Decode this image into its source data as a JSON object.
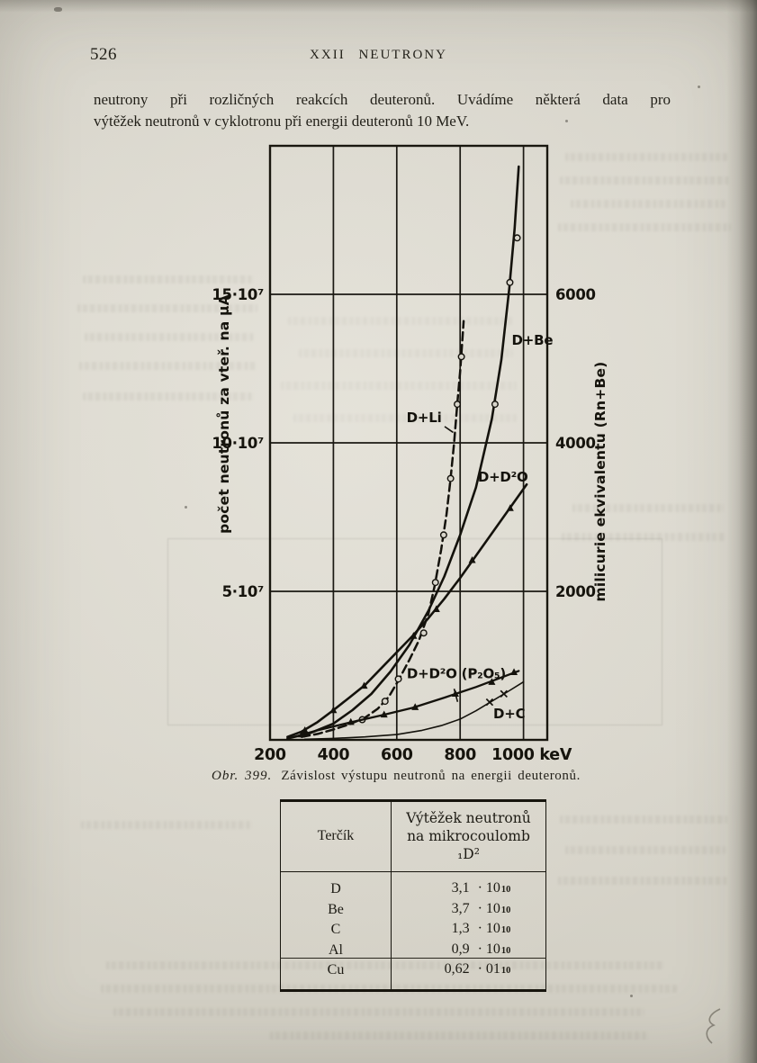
{
  "page": {
    "number": "526",
    "running_head": "XXII NEUTRONY",
    "paragraph_line1": "neutrony při rozličných reakcích deuteronů. Uvádíme některá data pro",
    "paragraph_line2": "výtěžek neutronů v cyklotronu při energii deuteronů 10 MeV.",
    "caption_prefix": "Obr. 399.",
    "caption_text": "Závislost výstupu neutronů na energii deuteronů."
  },
  "chart_data": {
    "type": "line",
    "title": "",
    "xlabel": "keV",
    "ylabel_left": "počet neutronů za vteř. na μA",
    "ylabel_right": "milicurie ekvivalentu (Rn+Be)",
    "x_range": [
      200,
      1075
    ],
    "y_range": [
      0,
      20
    ],
    "y_unit": "10^7 neutronů / s·μA",
    "grid": true,
    "x_ticks": [
      {
        "v": 200,
        "label": "200",
        "grid": false,
        "dx": 0
      },
      {
        "v": 400,
        "label": "400",
        "grid": true,
        "dx": 0
      },
      {
        "v": 600,
        "label": "600",
        "grid": true,
        "dx": 0
      },
      {
        "v": 800,
        "label": "800",
        "grid": true,
        "dx": 0
      },
      {
        "v": 1000,
        "label": "1000 keV",
        "grid": true,
        "dx": 9
      }
    ],
    "y_ticks": [
      {
        "v": 5,
        "left": "5·10⁷",
        "right": "2000"
      },
      {
        "v": 10,
        "left": "10·10⁷",
        "right": "4000"
      },
      {
        "v": 15,
        "left": "15·10⁷",
        "right": "6000"
      }
    ],
    "series": [
      {
        "name": "D+Be",
        "label": "D+Be",
        "label_pos": [
          1028,
          13.3
        ],
        "label_anchor": "middle",
        "dash": false,
        "width": 2.6,
        "marker": "circle",
        "points": [
          [
            255,
            0.05
          ],
          [
            320,
            0.2
          ],
          [
            400,
            0.55
          ],
          [
            460,
            1.0
          ],
          [
            520,
            1.55
          ],
          [
            580,
            2.3
          ],
          [
            640,
            3.2
          ],
          [
            700,
            4.35
          ],
          [
            750,
            5.5
          ],
          [
            800,
            6.9
          ],
          [
            850,
            8.5
          ],
          [
            900,
            10.8
          ],
          [
            930,
            12.8
          ],
          [
            955,
            15.2
          ],
          [
            972,
            17.2
          ],
          [
            985,
            19.3
          ]
        ],
        "marker_points": [
          [
            910,
            11.3
          ],
          [
            957,
            15.4
          ],
          [
            980,
            16.9
          ]
        ]
      },
      {
        "name": "D+Li",
        "label": "D+Li",
        "label_pos": [
          686,
          10.7
        ],
        "label_anchor": "middle",
        "dash": true,
        "width": 2.5,
        "marker": "circle",
        "pointer": [
          [
            751,
            10.55
          ],
          [
            778,
            10.35
          ]
        ],
        "points": [
          [
            300,
            0.1
          ],
          [
            350,
            0.2
          ],
          [
            400,
            0.35
          ],
          [
            450,
            0.52
          ],
          [
            500,
            0.75
          ],
          [
            540,
            1.05
          ],
          [
            575,
            1.45
          ],
          [
            605,
            2.0
          ],
          [
            640,
            2.7
          ],
          [
            670,
            3.35
          ],
          [
            700,
            4.25
          ],
          [
            720,
            5.2
          ],
          [
            740,
            6.4
          ],
          [
            757,
            7.6
          ],
          [
            770,
            8.8
          ],
          [
            781,
            10.0
          ],
          [
            791,
            11.3
          ],
          [
            800,
            12.4
          ],
          [
            806,
            13.3
          ],
          [
            811,
            14.1
          ]
        ],
        "marker_points": [
          [
            491,
            0.68
          ],
          [
            563,
            1.3
          ],
          [
            605,
            2.05
          ],
          [
            685,
            3.6
          ],
          [
            722,
            5.3
          ],
          [
            748,
            6.9
          ],
          [
            770,
            8.8
          ],
          [
            791,
            11.3
          ],
          [
            804,
            12.9
          ]
        ]
      },
      {
        "name": "D+D2O",
        "label": "D+D²O",
        "label_pos": [
          935,
          8.7
        ],
        "label_anchor": "middle",
        "dash": false,
        "width": 2.6,
        "marker": "triangle",
        "points": [
          [
            255,
            0.1
          ],
          [
            300,
            0.28
          ],
          [
            350,
            0.6
          ],
          [
            400,
            1.0
          ],
          [
            450,
            1.42
          ],
          [
            500,
            1.85
          ],
          [
            550,
            2.4
          ],
          [
            600,
            2.95
          ],
          [
            650,
            3.5
          ],
          [
            700,
            4.1
          ],
          [
            750,
            4.75
          ],
          [
            800,
            5.45
          ],
          [
            850,
            6.2
          ],
          [
            900,
            6.95
          ],
          [
            950,
            7.7
          ],
          [
            1010,
            8.6
          ]
        ],
        "marker_points": [
          [
            310,
            0.32
          ],
          [
            400,
            1.0
          ],
          [
            497,
            1.82
          ],
          [
            653,
            3.5
          ],
          [
            725,
            4.4
          ],
          [
            838,
            6.05
          ],
          [
            958,
            7.8
          ]
        ]
      },
      {
        "name": "D+D2O-P2O5",
        "label": "D+D²O (P₂O₅)",
        "label_pos": [
          788,
          2.08
        ],
        "label_anchor": "middle",
        "dash": false,
        "width": 2.3,
        "marker": "triangle",
        "pointer": [
          [
            781,
            1.72
          ],
          [
            792,
            1.28
          ]
        ],
        "points": [
          [
            265,
            0.07
          ],
          [
            350,
            0.32
          ],
          [
            450,
            0.58
          ],
          [
            550,
            0.82
          ],
          [
            650,
            1.08
          ],
          [
            750,
            1.42
          ],
          [
            850,
            1.78
          ],
          [
            930,
            2.1
          ],
          [
            985,
            2.32
          ]
        ],
        "marker_points": [
          [
            300,
            0.18
          ],
          [
            455,
            0.6
          ],
          [
            560,
            0.85
          ],
          [
            658,
            1.1
          ],
          [
            785,
            1.55
          ],
          [
            900,
            1.95
          ],
          [
            970,
            2.28
          ]
        ]
      },
      {
        "name": "D+C",
        "label": "D+C",
        "label_pos": [
          955,
          0.72
        ],
        "label_anchor": "middle",
        "dash": false,
        "width": 1.6,
        "marker": "x",
        "points": [
          [
            310,
            0.02
          ],
          [
            400,
            0.05
          ],
          [
            500,
            0.1
          ],
          [
            600,
            0.18
          ],
          [
            680,
            0.32
          ],
          [
            740,
            0.48
          ],
          [
            800,
            0.7
          ],
          [
            850,
            0.98
          ],
          [
            900,
            1.3
          ],
          [
            950,
            1.62
          ],
          [
            1000,
            1.95
          ]
        ],
        "marker_points": [
          [
            893,
            1.27
          ],
          [
            938,
            1.55
          ]
        ]
      }
    ]
  },
  "table": {
    "col1_header": "Terčík",
    "col2_header_line1": "Výtěžek neutronů",
    "col2_header_line2": "na mikrocoulomb ₁D²",
    "rows": [
      {
        "target": "D",
        "value": "3,1",
        "mult": "· 10",
        "exp": "10"
      },
      {
        "target": "Be",
        "value": "3,7",
        "mult": "· 10",
        "exp": "10"
      },
      {
        "target": "C",
        "value": "1,3",
        "mult": "· 10",
        "exp": "10"
      },
      {
        "target": "Al",
        "value": "0,9",
        "mult": "· 10",
        "exp": "10"
      },
      {
        "target": "Cu",
        "value": "0,62",
        "mult": "· 01",
        "exp": "10"
      }
    ]
  }
}
